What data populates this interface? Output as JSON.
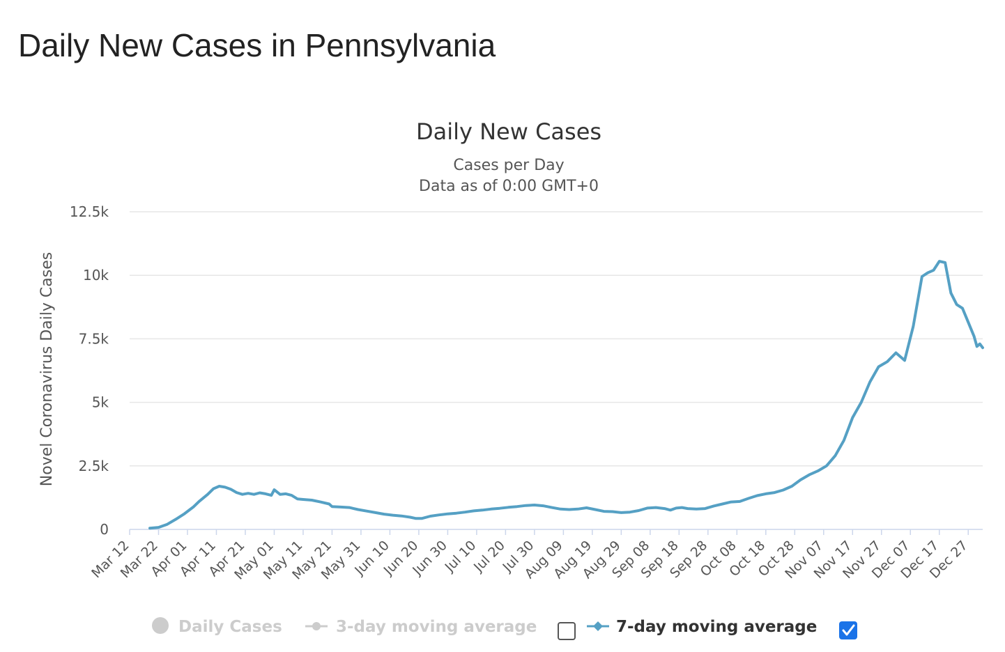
{
  "page": {
    "title": "Daily New Cases in Pennsylvania"
  },
  "colors": {
    "series": "#55A0C4",
    "grid": "#e6e6e6",
    "axis": "#ccd6eb",
    "legend_disabled": "#cccccc",
    "checkbox_checked": "#1a73e8"
  },
  "chart_data": {
    "type": "line",
    "title": "Daily New Cases",
    "subtitle_lines": [
      "Cases per Day",
      "Data as of 0:00 GMT+0"
    ],
    "ylabel": "Novel Coronavirus Daily Cases",
    "ylim": [
      0,
      12500
    ],
    "y_ticks": [
      {
        "value": 0,
        "label": "0"
      },
      {
        "value": 2500,
        "label": "2.5k"
      },
      {
        "value": 5000,
        "label": "5k"
      },
      {
        "value": 7500,
        "label": "7.5k"
      },
      {
        "value": 10000,
        "label": "10k"
      },
      {
        "value": 12500,
        "label": "12.5k"
      }
    ],
    "x_range": [
      "2020-03-12",
      "2021-01-01"
    ],
    "x_ticks": [
      "Mar 12",
      "Mar 22",
      "Apr 01",
      "Apr 11",
      "Apr 21",
      "May 01",
      "May 11",
      "May 21",
      "May 31",
      "Jun 10",
      "Jun 20",
      "Jun 30",
      "Jul 10",
      "Jul 20",
      "Jul 30",
      "Aug 09",
      "Aug 19",
      "Aug 29",
      "Sep 08",
      "Sep 18",
      "Sep 28",
      "Oct 08",
      "Oct 18",
      "Oct 28",
      "Nov 07",
      "Nov 17",
      "Nov 27",
      "Dec 07",
      "Dec 17",
      "Dec 27"
    ],
    "grid": true,
    "legend_position": "bottom",
    "series": [
      {
        "name": "7-day moving average",
        "points": [
          [
            "2020-03-19",
            50
          ],
          [
            "2020-03-22",
            80
          ],
          [
            "2020-03-25",
            200
          ],
          [
            "2020-03-28",
            400
          ],
          [
            "2020-03-31",
            620
          ],
          [
            "2020-04-03",
            880
          ],
          [
            "2020-04-05",
            1100
          ],
          [
            "2020-04-08",
            1380
          ],
          [
            "2020-04-10",
            1600
          ],
          [
            "2020-04-12",
            1700
          ],
          [
            "2020-04-14",
            1660
          ],
          [
            "2020-04-16",
            1580
          ],
          [
            "2020-04-18",
            1450
          ],
          [
            "2020-04-20",
            1380
          ],
          [
            "2020-04-22",
            1420
          ],
          [
            "2020-04-24",
            1380
          ],
          [
            "2020-04-26",
            1440
          ],
          [
            "2020-04-28",
            1400
          ],
          [
            "2020-04-30",
            1340
          ],
          [
            "2020-05-01",
            1560
          ],
          [
            "2020-05-03",
            1380
          ],
          [
            "2020-05-05",
            1400
          ],
          [
            "2020-05-07",
            1340
          ],
          [
            "2020-05-09",
            1200
          ],
          [
            "2020-05-11",
            1180
          ],
          [
            "2020-05-14",
            1150
          ],
          [
            "2020-05-17",
            1080
          ],
          [
            "2020-05-20",
            1000
          ],
          [
            "2020-05-21",
            900
          ],
          [
            "2020-05-24",
            880
          ],
          [
            "2020-05-27",
            860
          ],
          [
            "2020-05-30",
            780
          ],
          [
            "2020-06-02",
            720
          ],
          [
            "2020-06-05",
            660
          ],
          [
            "2020-06-08",
            600
          ],
          [
            "2020-06-11",
            560
          ],
          [
            "2020-06-14",
            530
          ],
          [
            "2020-06-17",
            480
          ],
          [
            "2020-06-19",
            430
          ],
          [
            "2020-06-21",
            430
          ],
          [
            "2020-06-24",
            520
          ],
          [
            "2020-06-27",
            570
          ],
          [
            "2020-06-30",
            610
          ],
          [
            "2020-07-03",
            640
          ],
          [
            "2020-07-06",
            680
          ],
          [
            "2020-07-09",
            730
          ],
          [
            "2020-07-12",
            760
          ],
          [
            "2020-07-15",
            800
          ],
          [
            "2020-07-18",
            830
          ],
          [
            "2020-07-21",
            870
          ],
          [
            "2020-07-24",
            900
          ],
          [
            "2020-07-27",
            940
          ],
          [
            "2020-07-30",
            960
          ],
          [
            "2020-08-02",
            930
          ],
          [
            "2020-08-05",
            860
          ],
          [
            "2020-08-08",
            800
          ],
          [
            "2020-08-11",
            780
          ],
          [
            "2020-08-14",
            800
          ],
          [
            "2020-08-17",
            850
          ],
          [
            "2020-08-20",
            780
          ],
          [
            "2020-08-23",
            710
          ],
          [
            "2020-08-26",
            700
          ],
          [
            "2020-08-29",
            660
          ],
          [
            "2020-09-01",
            680
          ],
          [
            "2020-09-04",
            740
          ],
          [
            "2020-09-07",
            840
          ],
          [
            "2020-09-10",
            860
          ],
          [
            "2020-09-13",
            820
          ],
          [
            "2020-09-15",
            760
          ],
          [
            "2020-09-17",
            840
          ],
          [
            "2020-09-19",
            860
          ],
          [
            "2020-09-21",
            820
          ],
          [
            "2020-09-24",
            800
          ],
          [
            "2020-09-27",
            820
          ],
          [
            "2020-09-30",
            920
          ],
          [
            "2020-10-03",
            1000
          ],
          [
            "2020-10-06",
            1080
          ],
          [
            "2020-10-09",
            1100
          ],
          [
            "2020-10-12",
            1220
          ],
          [
            "2020-10-15",
            1330
          ],
          [
            "2020-10-18",
            1400
          ],
          [
            "2020-10-21",
            1450
          ],
          [
            "2020-10-24",
            1550
          ],
          [
            "2020-10-27",
            1700
          ],
          [
            "2020-10-30",
            1950
          ],
          [
            "2020-11-02",
            2150
          ],
          [
            "2020-11-05",
            2300
          ],
          [
            "2020-11-08",
            2500
          ],
          [
            "2020-11-11",
            2900
          ],
          [
            "2020-11-14",
            3500
          ],
          [
            "2020-11-17",
            4400
          ],
          [
            "2020-11-20",
            5000
          ],
          [
            "2020-11-23",
            5800
          ],
          [
            "2020-11-26",
            6400
          ],
          [
            "2020-11-29",
            6600
          ],
          [
            "2020-12-02",
            6950
          ],
          [
            "2020-12-05",
            6650
          ],
          [
            "2020-12-08",
            8000
          ],
          [
            "2020-12-11",
            9950
          ],
          [
            "2020-12-13",
            10100
          ],
          [
            "2020-12-15",
            10200
          ],
          [
            "2020-12-17",
            10550
          ],
          [
            "2020-12-19",
            10500
          ],
          [
            "2020-12-21",
            9300
          ],
          [
            "2020-12-23",
            8850
          ],
          [
            "2020-12-25",
            8700
          ],
          [
            "2020-12-27",
            8150
          ],
          [
            "2020-12-29",
            7600
          ],
          [
            "2020-12-30",
            7200
          ],
          [
            "2020-12-31",
            7300
          ],
          [
            "2021-01-01",
            7150
          ]
        ]
      }
    ],
    "legend": [
      {
        "label": "Daily Cases",
        "marker": "circle",
        "enabled": false
      },
      {
        "label": "3-day moving average",
        "marker": "circle-line",
        "enabled": false,
        "checkbox": false
      },
      {
        "label": "7-day moving average",
        "marker": "diamond-line",
        "enabled": true,
        "checkbox": true
      }
    ]
  }
}
